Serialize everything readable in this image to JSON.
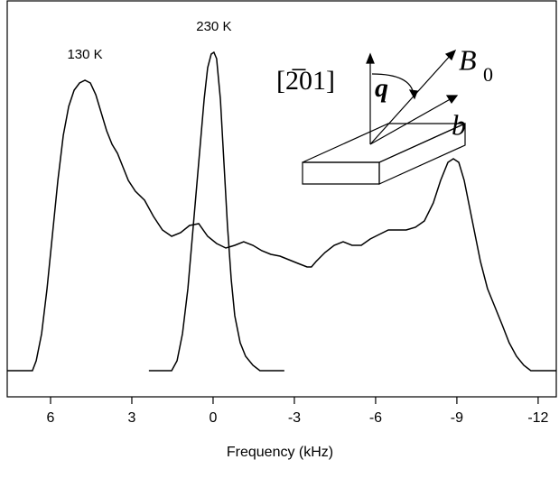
{
  "chart_data": {
    "type": "line",
    "x_label": "Frequency (kHz)",
    "xlim": [
      7.6,
      -12.67
    ],
    "xticks": [
      6,
      3,
      0,
      -3,
      -6,
      -9,
      -12
    ],
    "ylim": [
      0,
      44
    ],
    "series": [
      {
        "name": "130 K",
        "color": "#000000",
        "x": [
          7.6,
          6.67,
          6.53,
          6.33,
          6.13,
          5.93,
          5.73,
          5.53,
          5.33,
          5.13,
          4.93,
          4.73,
          4.53,
          4.33,
          4.13,
          3.93,
          3.73,
          3.53,
          3.33,
          3.13,
          2.87,
          2.53,
          2.2,
          1.87,
          1.53,
          1.2,
          0.87,
          0.53,
          0.2,
          -0.13,
          -0.47,
          -0.8,
          -1.13,
          -1.47,
          -1.8,
          -2.13,
          -2.47,
          -2.8,
          -3.13,
          -3.47,
          -3.63,
          -3.8,
          -4.13,
          -4.47,
          -4.8,
          -5.13,
          -5.47,
          -5.8,
          -6.13,
          -6.47,
          -6.8,
          -7.13,
          -7.47,
          -7.8,
          -8.13,
          -8.4,
          -8.67,
          -8.87,
          -9.07,
          -9.27,
          -9.47,
          -9.67,
          -9.87,
          -10.13,
          -10.4,
          -10.67,
          -10.93,
          -11.2,
          -11.47,
          -11.73,
          -12.67
        ],
        "values": [
          2.9,
          2.9,
          4,
          7,
          12,
          18,
          24,
          29,
          32.2,
          34,
          34.8,
          35.1,
          34.8,
          33.5,
          31.5,
          29.5,
          28,
          27,
          25.5,
          24,
          22.8,
          21.8,
          20,
          18.5,
          17.8,
          18.2,
          19,
          19.2,
          17.8,
          17,
          16.5,
          16.8,
          17.2,
          16.8,
          16.2,
          15.8,
          15.6,
          15.2,
          14.8,
          14.4,
          14.4,
          15,
          16,
          16.8,
          17.2,
          16.8,
          16.8,
          17.5,
          18,
          18.5,
          18.5,
          18.5,
          18.8,
          19.5,
          21.5,
          24,
          26,
          26.4,
          26,
          24,
          21,
          18,
          15,
          12,
          10,
          8,
          6,
          4.5,
          3.5,
          2.9,
          2.9
        ]
      },
      {
        "name": "230 K",
        "color": "#000000",
        "x": [
          2.37,
          1.53,
          1.33,
          1.13,
          0.93,
          0.73,
          0.53,
          0.33,
          0.2,
          0.07,
          -0.03,
          -0.13,
          -0.27,
          -0.4,
          -0.53,
          -0.67,
          -0.8,
          -1,
          -1.2,
          -1.47,
          -1.73,
          -2.63
        ],
        "values": [
          2.9,
          2.9,
          4,
          7,
          12,
          19,
          26,
          33,
          36.5,
          38,
          38.2,
          37.5,
          33,
          26,
          19,
          13,
          9,
          6,
          4.5,
          3.5,
          2.9,
          2.9
        ]
      }
    ],
    "inset": {
      "direction": "[2̅01]",
      "vector_q": "q",
      "field": "B",
      "field_subscript": "0",
      "axis_b": "b"
    }
  }
}
